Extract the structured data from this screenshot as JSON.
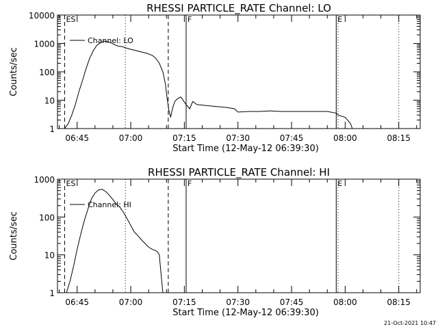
{
  "stamp": "21-Oct-2021 10:47",
  "chart_data": [
    {
      "type": "line",
      "title": "RHESSI PARTICLE_RATE Channel: LO",
      "xlabel": "Start Time (12-May-12 06:39:30)",
      "ylabel": "Counts/sec",
      "scale_y": "log",
      "xlim": [
        "06:39:30",
        "08:21:00"
      ],
      "ylim": [
        1,
        10000
      ],
      "x_ticks": [
        "06:45",
        "07:00",
        "07:15",
        "07:30",
        "07:45",
        "08:00",
        "08:15"
      ],
      "y_ticks": [
        "1",
        "10",
        "100",
        "1000",
        "10000"
      ],
      "legend": {
        "position": "top-left",
        "entries": [
          {
            "label": "Channel: LO"
          }
        ]
      },
      "markers": [
        {
          "time": "06:41:30",
          "style": "dashed",
          "label": "ES"
        },
        {
          "time": "06:58:30",
          "style": "dotted",
          "label": ""
        },
        {
          "time": "07:10:30",
          "style": "dashed",
          "label": ""
        },
        {
          "time": "07:15:30",
          "style": "solid",
          "label": "F"
        },
        {
          "time": "07:57:30",
          "style": "solid",
          "label": "E"
        },
        {
          "time": "07:58:00",
          "style": "dotted",
          "label": ""
        },
        {
          "time": "08:15:00",
          "style": "dotted",
          "label": ""
        }
      ],
      "series": [
        {
          "name": "Channel: LO",
          "x": [
            "06:41:30",
            "06:42:30",
            "06:43:30",
            "06:44:30",
            "06:45:30",
            "06:46:30",
            "06:47:30",
            "06:48:30",
            "06:49:30",
            "06:50:30",
            "06:51:30",
            "06:52:30",
            "06:53:30",
            "06:54:30",
            "06:55:30",
            "06:56:30",
            "06:57:30",
            "06:58:30",
            "07:00:00",
            "07:01:30",
            "07:03:00",
            "07:04:30",
            "07:06:00",
            "07:07:00",
            "07:08:00",
            "07:09:00",
            "07:09:40",
            "07:10:10",
            "07:10:40",
            "07:11:10",
            "07:11:40",
            "07:12:20",
            "07:13:00",
            "07:14:00",
            "07:15:30",
            "07:16:30",
            "07:17:20",
            "07:18:30",
            "07:21:00",
            "07:24:00",
            "07:27:00",
            "07:29:00",
            "07:30:00",
            "07:33:00",
            "07:36:00",
            "07:39:00",
            "07:42:00",
            "07:45:00",
            "07:48:00",
            "07:51:00",
            "07:54:00",
            "07:55:00",
            "07:57:30",
            "07:58:00",
            "08:00:00",
            "08:01:30",
            "08:02:00"
          ],
          "y": [
            1.0,
            1.5,
            3,
            7,
            20,
            50,
            130,
            300,
            550,
            850,
            1050,
            1200,
            1150,
            1050,
            900,
            800,
            780,
            700,
            620,
            560,
            500,
            450,
            380,
            300,
            200,
            100,
            40,
            12,
            4.5,
            2.5,
            5,
            9,
            11,
            13,
            7,
            5,
            9,
            7,
            6.5,
            6,
            5.5,
            5,
            3.8,
            4,
            4,
            4.2,
            4,
            4,
            4,
            4,
            4,
            4,
            3.5,
            3,
            2.5,
            1.5,
            1
          ]
        }
      ]
    },
    {
      "type": "line",
      "title": "RHESSI PARTICLE_RATE Channel: HI",
      "xlabel": "Start Time (12-May-12 06:39:30)",
      "ylabel": "Counts/sec",
      "scale_y": "log",
      "xlim": [
        "06:39:30",
        "08:21:00"
      ],
      "ylim": [
        1,
        1000
      ],
      "x_ticks": [
        "06:45",
        "07:00",
        "07:15",
        "07:30",
        "07:45",
        "08:00",
        "08:15"
      ],
      "y_ticks": [
        "1",
        "10",
        "100",
        "1000"
      ],
      "legend": {
        "position": "top-left",
        "entries": [
          {
            "label": "Channel: HI"
          }
        ]
      },
      "markers": [
        {
          "time": "06:41:30",
          "style": "dashed",
          "label": "ES"
        },
        {
          "time": "06:58:30",
          "style": "dotted",
          "label": ""
        },
        {
          "time": "07:10:30",
          "style": "dashed",
          "label": ""
        },
        {
          "time": "07:15:30",
          "style": "solid",
          "label": "F"
        },
        {
          "time": "07:57:30",
          "style": "solid",
          "label": "E"
        },
        {
          "time": "07:58:00",
          "style": "dotted",
          "label": ""
        },
        {
          "time": "08:15:00",
          "style": "dotted",
          "label": ""
        }
      ],
      "series": [
        {
          "name": "Channel: HI",
          "x": [
            "06:42:00",
            "06:43:00",
            "06:44:00",
            "06:45:00",
            "06:46:00",
            "06:47:00",
            "06:48:00",
            "06:49:00",
            "06:50:00",
            "06:51:00",
            "06:52:00",
            "06:53:00",
            "06:54:00",
            "06:55:00",
            "06:56:00",
            "06:57:00",
            "06:58:00",
            "06:59:00",
            "07:00:00",
            "07:01:00",
            "07:02:00",
            "07:03:00",
            "07:04:00",
            "07:05:00",
            "07:06:00",
            "07:07:00",
            "07:07:30",
            "07:08:00",
            "07:08:30",
            "07:09:00"
          ],
          "y": [
            1.0,
            2,
            5,
            14,
            35,
            80,
            160,
            300,
            430,
            520,
            540,
            470,
            380,
            290,
            220,
            180,
            130,
            90,
            60,
            40,
            32,
            25,
            20,
            16,
            14,
            13,
            12,
            10,
            3,
            1
          ]
        }
      ]
    }
  ]
}
